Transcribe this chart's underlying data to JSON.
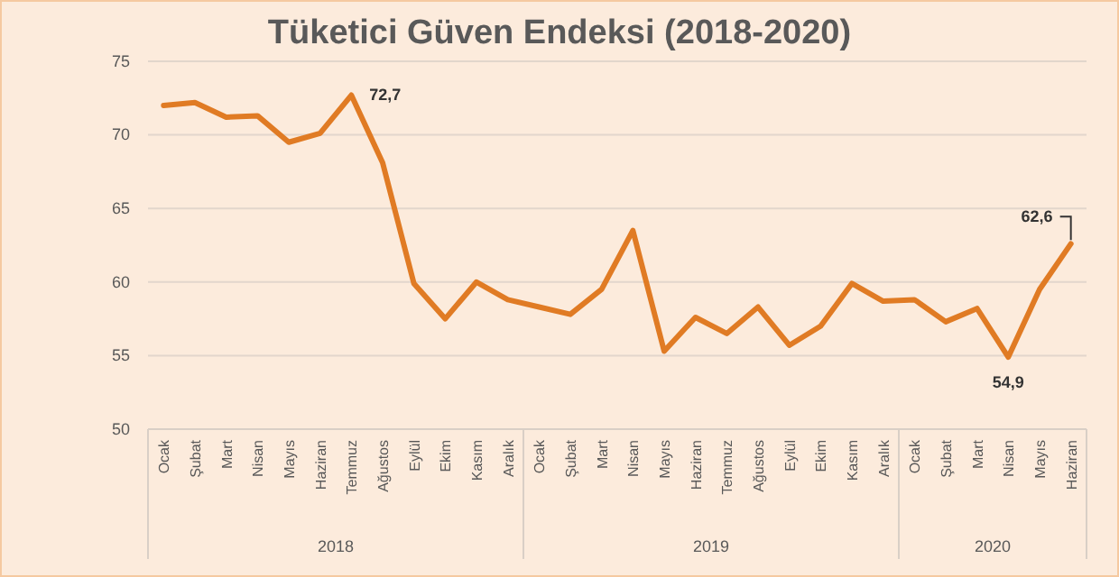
{
  "chart_data": {
    "type": "line",
    "title": "Tüketici Güven Endeksi (2018-2020)",
    "categories": [
      "Ocak",
      "Şubat",
      "Mart",
      "Nisan",
      "Mayıs",
      "Haziran",
      "Temmuz",
      "Ağustos",
      "Eylül",
      "Ekim",
      "Kasım",
      "Aralık",
      "Ocak",
      "Şubat",
      "Mart",
      "Nisan",
      "Mayıs",
      "Haziran",
      "Temmuz",
      "Ağustos",
      "Eylül",
      "Ekim",
      "Kasım",
      "Aralık",
      "Ocak",
      "Şubat",
      "Mart",
      "Nisan",
      "Mayıs",
      "Haziran"
    ],
    "series": [
      {
        "color": "#e07b24",
        "values": [
          72.0,
          72.2,
          71.2,
          71.3,
          69.5,
          70.1,
          72.7,
          68.1,
          59.9,
          57.5,
          60.0,
          58.8,
          58.3,
          57.8,
          59.5,
          63.5,
          55.3,
          57.6,
          56.5,
          58.3,
          55.7,
          57.0,
          59.9,
          58.7,
          58.8,
          57.3,
          58.2,
          54.9,
          59.5,
          62.6
        ]
      }
    ],
    "ylim": [
      50,
      75
    ],
    "yticks": [
      50,
      55,
      60,
      65,
      70,
      75
    ],
    "grid": "y",
    "marker": "none",
    "line_style": "solid",
    "value_labels": [
      null,
      null,
      null,
      null,
      null,
      null,
      "72,7",
      null,
      null,
      null,
      null,
      null,
      null,
      null,
      null,
      null,
      null,
      null,
      null,
      null,
      null,
      null,
      null,
      null,
      null,
      null,
      null,
      "54,9",
      null,
      "62,6"
    ],
    "annotations": [
      "2018",
      "2019",
      "2020"
    ]
  }
}
